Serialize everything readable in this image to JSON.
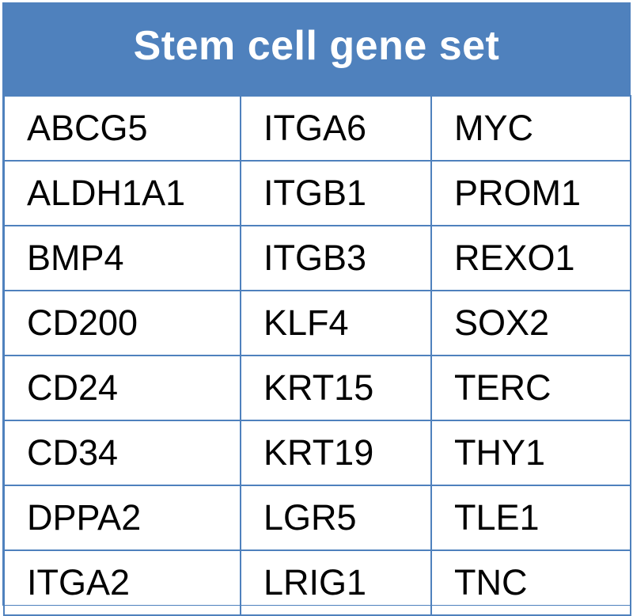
{
  "table": {
    "title": "Stem cell gene set",
    "rows": [
      [
        "ABCG5",
        "ITGA6",
        "MYC"
      ],
      [
        "ALDH1A1",
        "ITGB1",
        "PROM1"
      ],
      [
        "BMP4",
        "ITGB3",
        "REXO1"
      ],
      [
        "CD200",
        "KLF4",
        "SOX2"
      ],
      [
        "CD24",
        "KRT15",
        "TERC"
      ],
      [
        "CD34",
        "KRT19",
        "THY1"
      ],
      [
        "DPPA2",
        "LGR5",
        "TLE1"
      ],
      [
        "ITGA2",
        "LRIG1",
        "TNC"
      ]
    ]
  },
  "colors": {
    "header_background": "#4f81bd",
    "header_text": "#ffffff",
    "grid_lines": "#4f81bd",
    "cell_text": "#000000"
  }
}
